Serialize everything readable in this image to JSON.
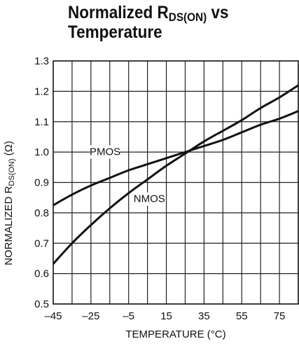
{
  "chart_data": {
    "type": "line",
    "title": {
      "prefix": "Normalized R",
      "sub": "DS(ON)",
      "suffix": " vs",
      "line2": "Temperature"
    },
    "xlabel": "TEMPERATURE (°C)",
    "ylabel": {
      "prefix": "NORMALIZED R",
      "sub": "DS(ON)",
      "suffix": " (Ω)"
    },
    "xlim": [
      -45,
      85
    ],
    "ylim": [
      0.5,
      1.3
    ],
    "x_ticks": [
      -45,
      -25,
      -5,
      15,
      35,
      55,
      75
    ],
    "x_tick_labels": [
      "–45",
      "–25",
      "–5",
      "15",
      "35",
      "55",
      "75"
    ],
    "y_ticks": [
      0.5,
      0.6,
      0.7,
      0.8,
      0.9,
      1.0,
      1.1,
      1.2,
      1.3
    ],
    "y_tick_labels": [
      "0.5",
      "0.6",
      "0.7",
      "0.8",
      "0.9",
      "1.0",
      "1.1",
      "1.2",
      "1.3"
    ],
    "grid": true,
    "series": [
      {
        "name": "PMOS",
        "x": [
          -45,
          -35,
          -25,
          -15,
          -5,
          5,
          15,
          25,
          35,
          45,
          55,
          65,
          75,
          85
        ],
        "y": [
          0.825,
          0.86,
          0.89,
          0.915,
          0.94,
          0.96,
          0.98,
          1.0,
          1.02,
          1.04,
          1.065,
          1.09,
          1.11,
          1.135
        ]
      },
      {
        "name": "NMOS",
        "x": [
          -45,
          -35,
          -25,
          -15,
          -5,
          5,
          15,
          25,
          35,
          45,
          55,
          65,
          75,
          85
        ],
        "y": [
          0.632,
          0.7,
          0.76,
          0.815,
          0.865,
          0.91,
          0.955,
          0.995,
          1.035,
          1.07,
          1.105,
          1.145,
          1.18,
          1.22
        ]
      }
    ],
    "annotations": [
      {
        "text": "PMOS",
        "x": -17.5,
        "y": 0.99
      },
      {
        "text": "NMOS",
        "x": 6,
        "y": 0.835
      }
    ]
  }
}
